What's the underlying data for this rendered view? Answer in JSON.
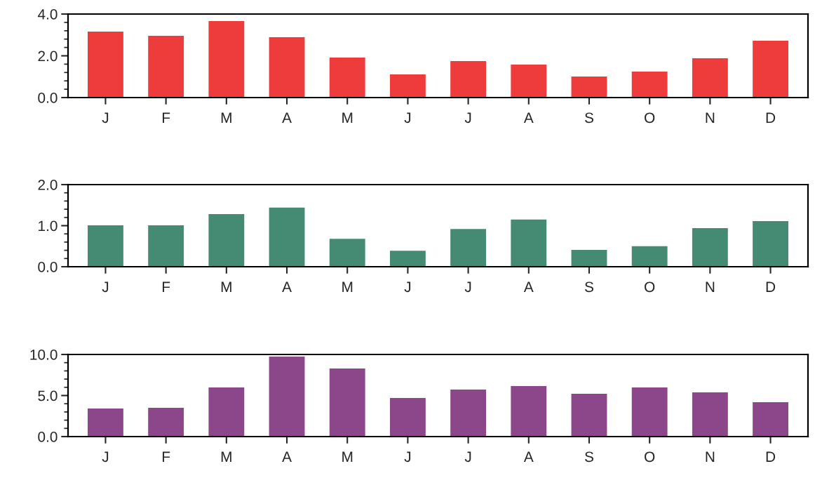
{
  "chart_data": [
    {
      "type": "bar",
      "categories": [
        "J",
        "F",
        "M",
        "A",
        "M",
        "J",
        "J",
        "A",
        "S",
        "O",
        "N",
        "D"
      ],
      "values": [
        3.16,
        2.96,
        3.66,
        2.89,
        1.92,
        1.11,
        1.75,
        1.58,
        1.01,
        1.24,
        1.88,
        2.72
      ],
      "color": "#ee3b3b",
      "ylim": [
        0,
        4
      ],
      "yticks": [
        {
          "value": 0,
          "label": "0.0"
        },
        {
          "value": 2,
          "label": "2.0"
        },
        {
          "value": 4,
          "label": "4.0"
        }
      ],
      "grid": false,
      "legend": false
    },
    {
      "type": "bar",
      "categories": [
        "J",
        "F",
        "M",
        "A",
        "M",
        "J",
        "J",
        "A",
        "S",
        "O",
        "N",
        "D"
      ],
      "values": [
        1.01,
        1.01,
        1.28,
        1.44,
        0.68,
        0.39,
        0.92,
        1.15,
        0.41,
        0.5,
        0.94,
        1.11
      ],
      "color": "#458b74",
      "ylim": [
        0,
        2
      ],
      "yticks": [
        {
          "value": 0,
          "label": "0.0"
        },
        {
          "value": 1,
          "label": "1.0"
        },
        {
          "value": 2,
          "label": "2.0"
        }
      ],
      "grid": false,
      "legend": false
    },
    {
      "type": "bar",
      "categories": [
        "J",
        "F",
        "M",
        "A",
        "M",
        "J",
        "J",
        "A",
        "S",
        "O",
        "N",
        "D"
      ],
      "values": [
        3.42,
        3.5,
        5.98,
        9.74,
        8.29,
        4.7,
        5.73,
        6.15,
        5.21,
        5.98,
        5.38,
        4.19
      ],
      "color": "#8b4789",
      "ylim": [
        0,
        10
      ],
      "yticks": [
        {
          "value": 0,
          "label": "0.0"
        },
        {
          "value": 5,
          "label": "5.0"
        },
        {
          "value": 10,
          "label": "10.0"
        }
      ],
      "grid": false,
      "legend": false
    }
  ]
}
